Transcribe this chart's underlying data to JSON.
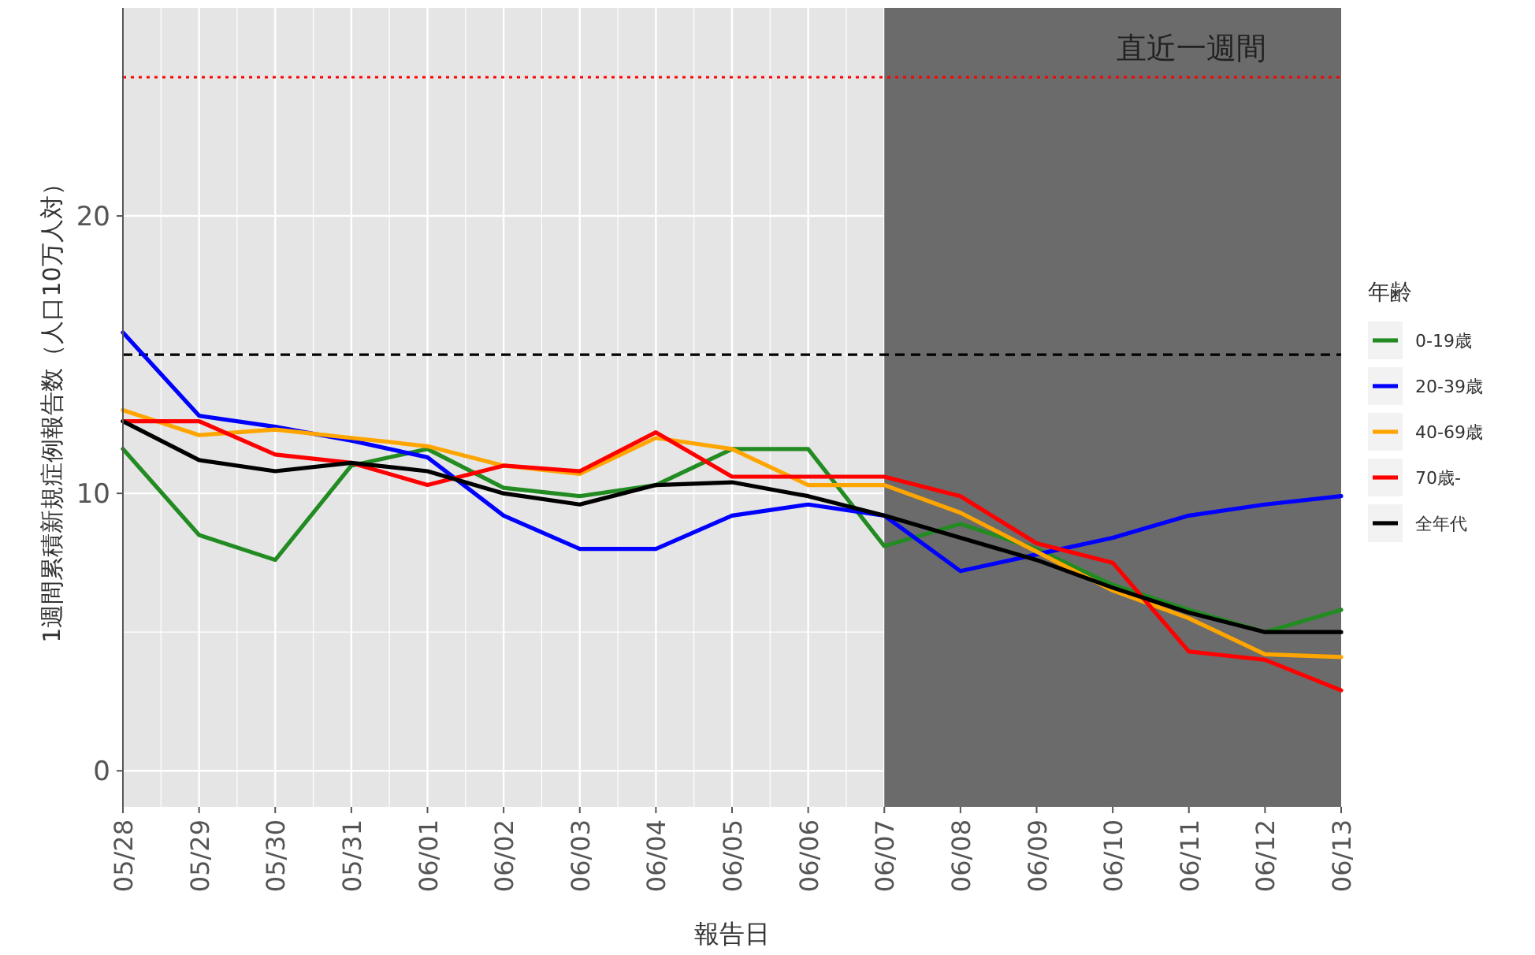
{
  "chart_data": {
    "type": "line",
    "xlabel": "報告日",
    "ylabel": "1週間累積新規症例報告数（人口10万人対）",
    "legend_title": "年齢",
    "categories": [
      "05/28",
      "05/29",
      "05/30",
      "05/31",
      "06/01",
      "06/02",
      "06/03",
      "06/04",
      "06/05",
      "06/06",
      "06/07",
      "06/08",
      "06/09",
      "06/10",
      "06/11",
      "06/12",
      "06/13"
    ],
    "series": [
      {
        "name": "0-19歳",
        "color": "#228b22",
        "values": [
          11.6,
          8.5,
          7.6,
          11.0,
          11.6,
          10.2,
          9.9,
          10.3,
          11.6,
          11.6,
          8.1,
          8.9,
          8.0,
          6.7,
          5.8,
          5.0,
          5.8
        ]
      },
      {
        "name": "20-39歳",
        "color": "#0000ff",
        "values": [
          15.8,
          12.8,
          12.4,
          11.9,
          11.3,
          9.2,
          8.0,
          8.0,
          9.2,
          9.6,
          9.2,
          7.2,
          7.8,
          8.4,
          9.2,
          9.6,
          9.9
        ]
      },
      {
        "name": "40-69歳",
        "color": "#ffa500",
        "values": [
          13.0,
          12.1,
          12.3,
          12.0,
          11.7,
          11.0,
          10.7,
          12.0,
          11.6,
          10.3,
          10.3,
          9.3,
          7.9,
          6.5,
          5.5,
          4.2,
          4.1
        ]
      },
      {
        "name": "70歳-",
        "color": "#ff0000",
        "values": [
          12.6,
          12.6,
          11.4,
          11.1,
          10.3,
          11.0,
          10.8,
          12.2,
          10.6,
          10.6,
          10.6,
          9.9,
          8.2,
          7.5,
          4.3,
          4.0,
          2.9
        ]
      },
      {
        "name": "全年代",
        "color": "#000000",
        "values": [
          12.6,
          11.2,
          10.8,
          11.1,
          10.8,
          10.0,
          9.6,
          10.3,
          10.4,
          9.9,
          9.2,
          8.4,
          7.6,
          6.6,
          5.7,
          5.0,
          5.0
        ]
      }
    ],
    "ylim": [
      -1.3,
      27.5
    ],
    "yticks": [
      0,
      10,
      20
    ],
    "ref_lines": [
      {
        "axis": "y",
        "value": 25,
        "color": "#ff0000",
        "line_style": "dotted"
      },
      {
        "axis": "y",
        "value": 15,
        "color": "#000000",
        "line_style": "dashed"
      }
    ],
    "bands": [
      {
        "axis": "x",
        "from": "06/07",
        "to": "06/13",
        "label": "直近一週間",
        "color": "#6b6b6b"
      }
    ],
    "grid": true,
    "legend": "right",
    "line_style": "solid",
    "marker": "none"
  }
}
